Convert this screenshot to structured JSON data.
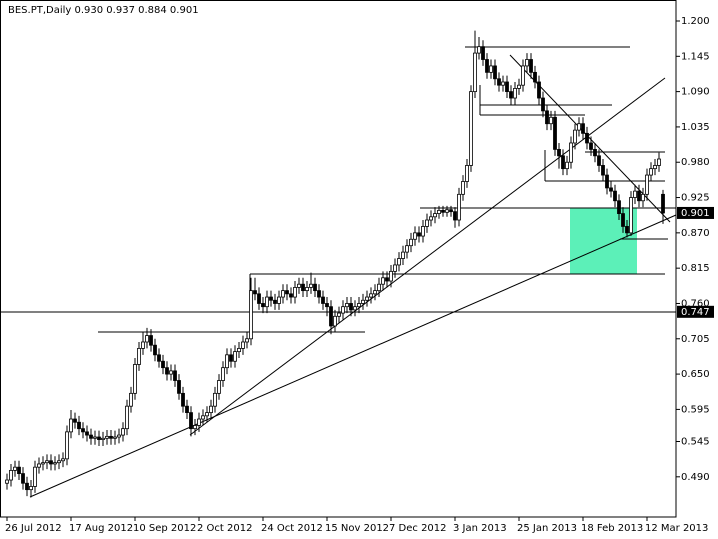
{
  "chart_data": {
    "type": "candlestick",
    "title": "BES.PT,Daily  0.930 0.937 0.884 0.901",
    "categories": [
      "26 Jul 2012",
      null,
      null,
      null,
      null,
      null,
      null,
      null,
      null,
      null,
      null,
      null,
      null,
      null,
      null,
      null,
      "17 Aug 2012",
      null,
      null,
      null,
      null,
      null,
      null,
      null,
      null,
      null,
      null,
      null,
      null,
      null,
      null,
      null,
      "10 Sep 2012",
      null,
      null,
      null,
      null,
      null,
      null,
      null,
      null,
      null,
      null,
      null,
      null,
      null,
      null,
      null,
      "2 Oct 2012",
      null,
      null,
      null,
      null,
      null,
      null,
      null,
      null,
      null,
      null,
      null,
      null,
      null,
      null,
      null,
      "24 Oct 2012",
      null,
      null,
      null,
      null,
      null,
      null,
      null,
      null,
      null,
      null,
      null,
      null,
      null,
      null,
      null,
      "15 Nov 2012",
      null,
      null,
      null,
      null,
      null,
      null,
      null,
      null,
      null,
      null,
      null,
      null,
      null,
      null,
      null,
      "7 Dec 2012",
      null,
      null,
      null,
      null,
      null,
      null,
      null,
      null,
      null,
      null,
      null,
      null,
      null,
      null,
      null,
      "3 Jan 2013",
      null,
      null,
      null,
      null,
      null,
      null,
      null,
      null,
      null,
      null,
      null,
      null,
      null,
      null,
      null,
      "25 Jan 2013",
      null,
      null,
      null,
      null,
      null,
      null,
      null,
      null,
      null,
      null,
      null,
      null,
      null,
      null,
      null,
      "18 Feb 2013",
      null,
      null,
      null,
      null,
      null,
      null,
      null,
      null,
      null,
      null,
      null,
      null,
      null,
      null,
      null,
      "12 Mar 2013",
      null,
      null,
      null,
      null
    ],
    "open": [
      0.48,
      0.485,
      0.5,
      0.505,
      0.495,
      0.48,
      0.47,
      0.475,
      0.505,
      0.51,
      0.512,
      0.515,
      0.51,
      0.512,
      0.515,
      0.518,
      0.56,
      0.58,
      0.575,
      0.565,
      0.56,
      0.555,
      0.55,
      0.552,
      0.548,
      0.55,
      0.553,
      0.55,
      0.552,
      0.555,
      0.565,
      0.6,
      0.62,
      0.665,
      0.69,
      0.7,
      0.71,
      0.695,
      0.68,
      0.67,
      0.66,
      0.65,
      0.655,
      0.64,
      0.62,
      0.6,
      0.59,
      0.565,
      0.57,
      0.58,
      0.585,
      0.59,
      0.6,
      0.62,
      0.64,
      0.66,
      0.68,
      0.67,
      0.685,
      0.69,
      0.7,
      0.705,
      0.78,
      0.775,
      0.76,
      0.755,
      0.77,
      0.765,
      0.76,
      0.77,
      0.78,
      0.775,
      0.77,
      0.785,
      0.79,
      0.78,
      0.785,
      0.79,
      0.78,
      0.77,
      0.76,
      0.755,
      0.725,
      0.74,
      0.745,
      0.755,
      0.76,
      0.75,
      0.755,
      0.76,
      0.765,
      0.77,
      0.775,
      0.78,
      0.79,
      0.8,
      0.795,
      0.81,
      0.82,
      0.83,
      0.84,
      0.85,
      0.86,
      0.87,
      0.865,
      0.88,
      0.89,
      0.895,
      0.9,
      0.905,
      0.902,
      0.906,
      0.903,
      0.89,
      0.93,
      0.95,
      0.975,
      1.09,
      1.15,
      1.16,
      1.14,
      1.12,
      1.13,
      1.11,
      1.1,
      1.105,
      1.09,
      1.08,
      1.095,
      1.1,
      1.13,
      1.14,
      1.12,
      1.105,
      1.08,
      1.06,
      1.04,
      1.05,
      1.0,
      0.99,
      0.97,
      0.98,
      1.01,
      1.03,
      1.04,
      1.025,
      1.01,
      1.0,
      0.99,
      0.975,
      0.96,
      0.94,
      0.935,
      0.92,
      0.9,
      0.88,
      0.87,
      0.925,
      0.935,
      0.92,
      0.93,
      0.96,
      0.97,
      0.975,
      0.93
    ],
    "high": [
      0.495,
      0.51,
      0.515,
      0.515,
      0.505,
      0.49,
      0.485,
      0.515,
      0.52,
      0.522,
      0.525,
      0.525,
      0.522,
      0.525,
      0.528,
      0.57,
      0.594,
      0.59,
      0.585,
      0.575,
      0.57,
      0.565,
      0.562,
      0.562,
      0.56,
      0.563,
      0.563,
      0.562,
      0.565,
      0.575,
      0.61,
      0.63,
      0.675,
      0.7,
      0.715,
      0.722,
      0.72,
      0.705,
      0.69,
      0.68,
      0.67,
      0.665,
      0.665,
      0.65,
      0.63,
      0.61,
      0.6,
      0.58,
      0.59,
      0.595,
      0.6,
      0.61,
      0.63,
      0.65,
      0.67,
      0.69,
      0.69,
      0.695,
      0.7,
      0.71,
      0.715,
      0.8,
      0.8,
      0.785,
      0.77,
      0.78,
      0.78,
      0.775,
      0.78,
      0.79,
      0.79,
      0.785,
      0.795,
      0.8,
      0.8,
      0.795,
      0.808,
      0.8,
      0.79,
      0.78,
      0.77,
      0.765,
      0.75,
      0.755,
      0.765,
      0.77,
      0.77,
      0.765,
      0.77,
      0.775,
      0.78,
      0.785,
      0.79,
      0.8,
      0.81,
      0.81,
      0.82,
      0.83,
      0.84,
      0.85,
      0.86,
      0.87,
      0.88,
      0.88,
      0.89,
      0.9,
      0.905,
      0.91,
      0.912,
      0.912,
      0.912,
      0.912,
      0.91,
      0.94,
      0.96,
      0.985,
      1.1,
      1.185,
      1.175,
      1.17,
      1.15,
      1.14,
      1.14,
      1.12,
      1.115,
      1.115,
      1.1,
      1.105,
      1.11,
      1.14,
      1.15,
      1.15,
      1.13,
      1.115,
      1.09,
      1.07,
      1.06,
      1.06,
      1.01,
      1.0,
      0.99,
      1.02,
      1.04,
      1.05,
      1.05,
      1.035,
      1.02,
      1.01,
      1.0,
      0.985,
      0.97,
      0.95,
      0.945,
      0.93,
      0.91,
      0.89,
      0.935,
      0.945,
      0.945,
      0.94,
      0.97,
      0.98,
      0.985,
      0.995,
      0.937
    ],
    "low": [
      0.47,
      0.475,
      0.49,
      0.485,
      0.47,
      0.46,
      0.458,
      0.465,
      0.495,
      0.5,
      0.502,
      0.5,
      0.5,
      0.502,
      0.505,
      0.508,
      0.55,
      0.565,
      0.555,
      0.55,
      0.545,
      0.54,
      0.54,
      0.538,
      0.538,
      0.54,
      0.54,
      0.54,
      0.542,
      0.545,
      0.555,
      0.59,
      0.61,
      0.655,
      0.68,
      0.69,
      0.685,
      0.67,
      0.66,
      0.65,
      0.64,
      0.64,
      0.63,
      0.61,
      0.59,
      0.58,
      0.553,
      0.555,
      0.56,
      0.57,
      0.575,
      0.58,
      0.59,
      0.61,
      0.63,
      0.65,
      0.66,
      0.66,
      0.675,
      0.68,
      0.69,
      0.695,
      0.765,
      0.75,
      0.745,
      0.745,
      0.755,
      0.75,
      0.75,
      0.76,
      0.765,
      0.76,
      0.76,
      0.775,
      0.77,
      0.77,
      0.775,
      0.77,
      0.76,
      0.75,
      0.74,
      0.712,
      0.715,
      0.73,
      0.735,
      0.745,
      0.74,
      0.74,
      0.745,
      0.75,
      0.755,
      0.76,
      0.765,
      0.77,
      0.78,
      0.785,
      0.785,
      0.8,
      0.81,
      0.82,
      0.83,
      0.84,
      0.85,
      0.855,
      0.855,
      0.87,
      0.88,
      0.885,
      0.892,
      0.895,
      0.895,
      0.895,
      0.878,
      0.88,
      0.92,
      0.94,
      0.965,
      1.08,
      1.14,
      1.13,
      1.11,
      1.11,
      1.1,
      1.09,
      1.09,
      1.08,
      1.07,
      1.07,
      1.085,
      1.09,
      1.12,
      1.11,
      1.095,
      1.07,
      1.05,
      1.03,
      1.03,
      0.99,
      0.97,
      0.96,
      0.96,
      0.97,
      1.0,
      1.02,
      1.015,
      1.0,
      0.99,
      0.98,
      0.965,
      0.95,
      0.93,
      0.925,
      0.91,
      0.89,
      0.87,
      0.863,
      0.865,
      0.915,
      0.91,
      0.91,
      0.92,
      0.95,
      0.96,
      0.965,
      0.884
    ],
    "close": [
      0.485,
      0.5,
      0.505,
      0.495,
      0.48,
      0.47,
      0.475,
      0.505,
      0.51,
      0.512,
      0.515,
      0.51,
      0.512,
      0.515,
      0.518,
      0.56,
      0.58,
      0.575,
      0.565,
      0.56,
      0.555,
      0.55,
      0.552,
      0.548,
      0.55,
      0.553,
      0.55,
      0.552,
      0.555,
      0.565,
      0.6,
      0.62,
      0.665,
      0.69,
      0.7,
      0.71,
      0.695,
      0.68,
      0.67,
      0.66,
      0.65,
      0.655,
      0.64,
      0.62,
      0.6,
      0.59,
      0.565,
      0.57,
      0.58,
      0.585,
      0.59,
      0.6,
      0.62,
      0.64,
      0.66,
      0.68,
      0.67,
      0.685,
      0.69,
      0.7,
      0.705,
      0.78,
      0.775,
      0.76,
      0.755,
      0.77,
      0.765,
      0.76,
      0.77,
      0.78,
      0.775,
      0.77,
      0.785,
      0.79,
      0.78,
      0.785,
      0.79,
      0.78,
      0.77,
      0.76,
      0.755,
      0.725,
      0.74,
      0.745,
      0.755,
      0.76,
      0.75,
      0.755,
      0.76,
      0.765,
      0.77,
      0.775,
      0.78,
      0.79,
      0.8,
      0.795,
      0.81,
      0.82,
      0.83,
      0.84,
      0.85,
      0.86,
      0.87,
      0.865,
      0.88,
      0.89,
      0.895,
      0.9,
      0.905,
      0.902,
      0.906,
      0.903,
      0.89,
      0.93,
      0.95,
      0.975,
      1.09,
      1.15,
      1.16,
      1.14,
      1.12,
      1.13,
      1.11,
      1.1,
      1.105,
      1.09,
      1.08,
      1.095,
      1.1,
      1.13,
      1.14,
      1.12,
      1.105,
      1.08,
      1.06,
      1.04,
      1.05,
      1.0,
      0.99,
      0.97,
      0.98,
      1.01,
      1.03,
      1.04,
      1.025,
      1.01,
      1.0,
      0.99,
      0.975,
      0.96,
      0.94,
      0.935,
      0.92,
      0.9,
      0.88,
      0.87,
      0.925,
      0.935,
      0.92,
      0.93,
      0.96,
      0.97,
      0.975,
      0.985,
      0.901
    ],
    "up_color": "#ffffff",
    "down_color": "#000000",
    "ylim": [
      0.4274,
      1.2327
    ],
    "yticks": [
      {
        "value": 1.2,
        "label": "1.200"
      },
      1.145,
      {
        "value": 1.09,
        "label": "1.090"
      },
      1.035,
      {
        "value": 0.98,
        "label": "0.980"
      },
      0.925,
      {
        "value": 0.87,
        "label": "0.870"
      },
      0.815,
      {
        "value": 0.76,
        "label": "0.760"
      },
      0.705,
      {
        "value": 0.65,
        "label": "0.650"
      },
      0.595,
      0.545,
      {
        "value": 0.49,
        "label": "0.490"
      }
    ],
    "price_labels": [
      0.901,
      0.747
    ]
  }
}
